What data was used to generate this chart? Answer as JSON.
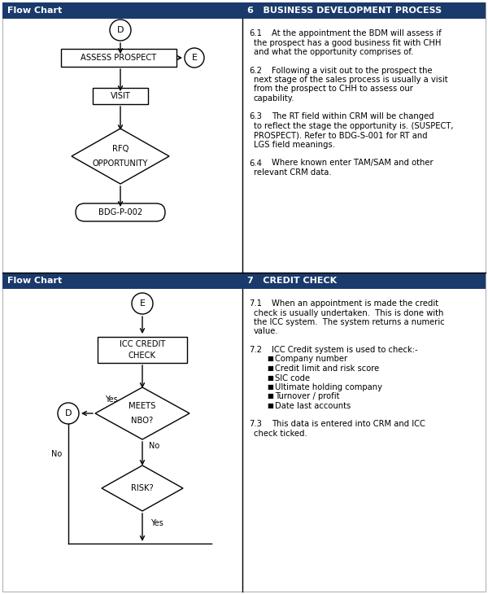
{
  "header_color": "#1a3a6b",
  "header_text_color": "#ffffff",
  "bg_color": "#ffffff",
  "section1": {
    "left_header": "Flow Chart",
    "right_header": "6   BUSINESS DEVELOPMENT PROCESS",
    "right_items": [
      {
        "num": "6.1",
        "lines": [
          "At the appointment the BDM will assess if",
          "the prospect has a good business fit with CHH",
          "and what the opportunity comprises of."
        ]
      },
      {
        "num": "6.2",
        "lines": [
          "Following a visit out to the prospect the",
          "next stage of the sales process is usually a visit",
          "from the prospect to CHH to assess our",
          "capability."
        ]
      },
      {
        "num": "6.3",
        "lines": [
          "The RT field within CRM will be changed",
          "to reflect the stage the opportunity is. (SUSPECT,",
          "PROSPECT). Refer to BDG-S-001 for RT and",
          "LGS field meanings."
        ]
      },
      {
        "num": "6.4",
        "lines": [
          "Where known enter TAM/SAM and other",
          "relevant CRM data."
        ]
      }
    ]
  },
  "section2": {
    "left_header": "Flow Chart",
    "right_header": "7   CREDIT CHECK",
    "right_items": [
      {
        "num": "7.1",
        "lines": [
          "When an appointment is made the credit",
          "check is usually undertaken.  This is done with",
          "the ICC system.  The system returns a numeric",
          "value."
        ]
      },
      {
        "num": "7.2",
        "lines": [
          "ICC Credit system is used to check:-"
        ],
        "bullets": [
          "Company number",
          "Credit limit and risk score",
          "SIC code",
          "Ultimate holding company",
          "Turnover / profit",
          "Date last accounts"
        ]
      },
      {
        "num": "7.3",
        "lines": [
          "This data is entered into CRM and ICC",
          "check ticked."
        ]
      }
    ]
  }
}
